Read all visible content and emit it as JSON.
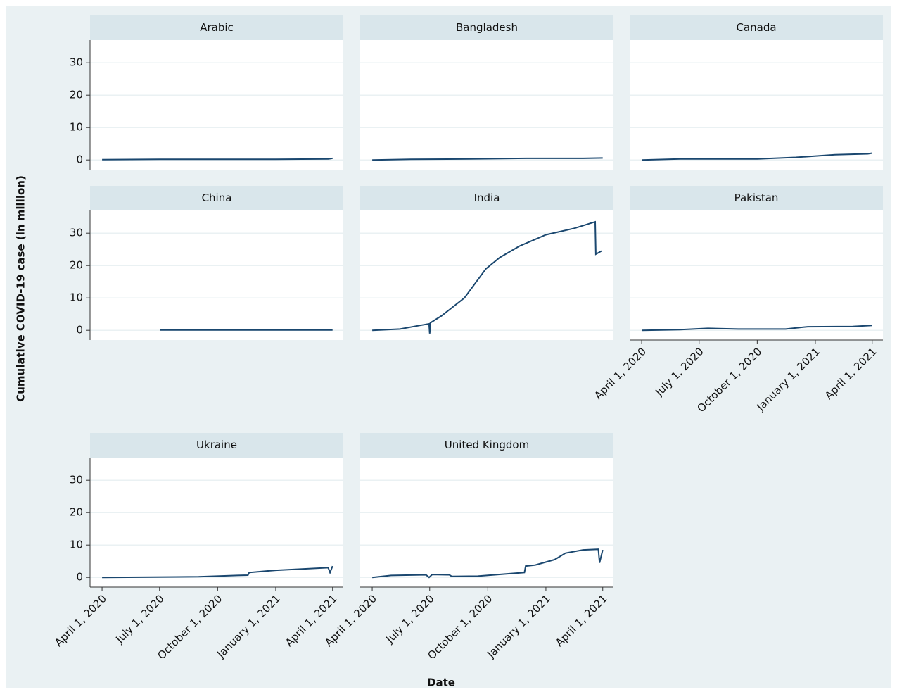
{
  "chart_data": {
    "type": "line",
    "ylabel": "Cumulative COVID-19  case (in million)",
    "xlabel": "Date",
    "color": "#1a476f",
    "grid": true,
    "ylim": [
      -3,
      37
    ],
    "yticks": [
      0,
      10,
      20,
      30
    ],
    "xlim": [
      "2020-03-13",
      "2021-04-18"
    ],
    "xticks": [
      {
        "value": "2020-04-01",
        "label": "April 1, 2020"
      },
      {
        "value": "2020-07-01",
        "label": "July 1, 2020"
      },
      {
        "value": "2020-10-01",
        "label": "October 1, 2020"
      },
      {
        "value": "2021-01-01",
        "label": "January 1, 2021"
      },
      {
        "value": "2021-04-01",
        "label": "April 1, 2021"
      }
    ],
    "panels": [
      {
        "title": "Arabic",
        "x": [
          "2020-04-01",
          "2020-07-01",
          "2020-10-01",
          "2021-01-01",
          "2021-03-25",
          "2021-04-01"
        ],
        "values": [
          0.1,
          0.2,
          0.2,
          0.2,
          0.3,
          0.5
        ]
      },
      {
        "title": "Bangladesh",
        "x": [
          "2020-04-01",
          "2020-06-01",
          "2020-09-01",
          "2020-12-01",
          "2021-03-01",
          "2021-04-01"
        ],
        "values": [
          0,
          0.2,
          0.3,
          0.5,
          0.5,
          0.6
        ]
      },
      {
        "title": "Canada",
        "x": [
          "2020-04-01",
          "2020-06-01",
          "2020-10-01",
          "2020-12-01",
          "2021-02-01",
          "2021-03-25",
          "2021-04-01"
        ],
        "values": [
          0,
          0.3,
          0.3,
          0.8,
          1.6,
          1.9,
          2.1
        ]
      },
      {
        "title": "China",
        "x": [
          "2020-07-02",
          "2020-10-01",
          "2021-01-01",
          "2021-04-01"
        ],
        "values": [
          0.1,
          0.1,
          0.1,
          0.1
        ]
      },
      {
        "title": "India",
        "x": [
          "2020-04-01",
          "2020-05-15",
          "2020-06-15",
          "2020-06-30",
          "2020-07-01",
          "2020-07-02",
          "2020-07-20",
          "2020-08-25",
          "2020-09-28",
          "2020-10-20",
          "2020-11-20",
          "2021-01-01",
          "2021-02-15",
          "2021-03-20",
          "2021-03-21",
          "2021-03-30"
        ],
        "values": [
          0,
          0.4,
          1.5,
          2,
          -1,
          2.3,
          4.5,
          10,
          19,
          22.5,
          26,
          29.5,
          31.5,
          33.5,
          23.5,
          24.5
        ]
      },
      {
        "title": "Pakistan",
        "x": [
          "2020-04-01",
          "2020-06-01",
          "2020-07-15",
          "2020-09-01",
          "2020-11-15",
          "2020-12-20",
          "2021-03-01",
          "2021-04-01"
        ],
        "values": [
          0,
          0.2,
          0.6,
          0.4,
          0.4,
          1.1,
          1.2,
          1.5
        ]
      },
      {
        "title": "Ukraine",
        "x": [
          "2020-04-01",
          "2020-09-01",
          "2020-11-01",
          "2020-11-18",
          "2020-11-20",
          "2021-01-01",
          "2021-03-25",
          "2021-03-28",
          "2021-04-01"
        ],
        "values": [
          0,
          0.2,
          0.6,
          0.7,
          1.5,
          2.2,
          3,
          1.5,
          3.5
        ]
      },
      {
        "title": "United Kingdom",
        "x": [
          "2020-04-01",
          "2020-05-01",
          "2020-06-25",
          "2020-06-30",
          "2020-07-05",
          "2020-08-01",
          "2020-08-05",
          "2020-09-15",
          "2020-11-28",
          "2020-11-30",
          "2020-12-15",
          "2021-01-15",
          "2021-02-01",
          "2021-03-01",
          "2021-03-25",
          "2021-03-27",
          "2021-04-01"
        ],
        "values": [
          0,
          0.6,
          0.8,
          0,
          0.9,
          0.8,
          0.3,
          0.4,
          1.5,
          3.5,
          3.8,
          5.5,
          7.5,
          8.5,
          8.7,
          4.5,
          8.5
        ]
      }
    ]
  }
}
